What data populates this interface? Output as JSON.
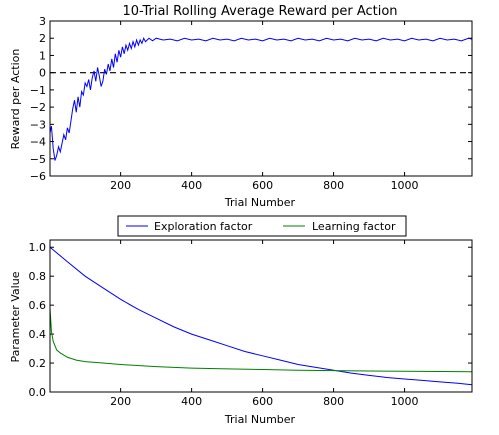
{
  "chart_data": [
    {
      "type": "line",
      "title": "10-Trial Rolling Average Reward per Action",
      "xlabel": "Trial Number",
      "ylabel": "Reward per Action",
      "xlim": [
        1,
        1190
      ],
      "ylim": [
        -6,
        3
      ],
      "xticks": [
        200,
        400,
        600,
        800,
        1000
      ],
      "yticks": [
        -6,
        -5,
        -4,
        -3,
        -2,
        -1,
        0,
        1,
        2,
        3
      ],
      "reference_line": {
        "y": 0,
        "style": "dashed",
        "color": "#000000"
      },
      "series": [
        {
          "color": "#0000ff",
          "points": [
            [
              1,
              -3.5
            ],
            [
              5,
              -3.1
            ],
            [
              10,
              -4.4
            ],
            [
              15,
              -5.1
            ],
            [
              20,
              -4.8
            ],
            [
              25,
              -4.3
            ],
            [
              30,
              -4.6
            ],
            [
              35,
              -4.1
            ],
            [
              40,
              -3.6
            ],
            [
              45,
              -3.9
            ],
            [
              50,
              -3.2
            ],
            [
              55,
              -3.5
            ],
            [
              60,
              -2.8
            ],
            [
              65,
              -2.1
            ],
            [
              70,
              -1.6
            ],
            [
              75,
              -2.3
            ],
            [
              80,
              -1.4
            ],
            [
              85,
              -2.0
            ],
            [
              90,
              -1.1
            ],
            [
              95,
              -1.3
            ],
            [
              100,
              -0.6
            ],
            [
              105,
              -0.8
            ],
            [
              110,
              -0.4
            ],
            [
              115,
              -1.0
            ],
            [
              120,
              -0.3
            ],
            [
              125,
              0.1
            ],
            [
              130,
              -0.5
            ],
            [
              135,
              0.3
            ],
            [
              140,
              -0.2
            ],
            [
              145,
              -0.8
            ],
            [
              150,
              -0.5
            ],
            [
              155,
              0.2
            ],
            [
              160,
              -0.1
            ],
            [
              165,
              0.5
            ],
            [
              170,
              0.1
            ],
            [
              175,
              0.8
            ],
            [
              180,
              0.3
            ],
            [
              185,
              1.1
            ],
            [
              190,
              0.6
            ],
            [
              195,
              1.3
            ],
            [
              200,
              0.9
            ],
            [
              205,
              1.5
            ],
            [
              210,
              1.1
            ],
            [
              215,
              1.6
            ],
            [
              220,
              1.3
            ],
            [
              225,
              1.7
            ],
            [
              230,
              1.4
            ],
            [
              235,
              1.8
            ],
            [
              240,
              1.5
            ],
            [
              245,
              1.9
            ],
            [
              250,
              1.6
            ],
            [
              255,
              1.9
            ],
            [
              260,
              1.7
            ],
            [
              265,
              2.0
            ],
            [
              270,
              1.8
            ],
            [
              280,
              2.0
            ],
            [
              290,
              1.85
            ],
            [
              300,
              2.0
            ],
            [
              320,
              1.9
            ],
            [
              340,
              1.95
            ],
            [
              360,
              1.85
            ],
            [
              380,
              2.0
            ],
            [
              400,
              1.9
            ],
            [
              420,
              1.95
            ],
            [
              440,
              1.85
            ],
            [
              460,
              2.0
            ],
            [
              480,
              1.9
            ],
            [
              500,
              1.95
            ],
            [
              520,
              1.85
            ],
            [
              540,
              2.0
            ],
            [
              560,
              1.9
            ],
            [
              580,
              1.95
            ],
            [
              600,
              1.85
            ],
            [
              620,
              2.0
            ],
            [
              640,
              1.9
            ],
            [
              660,
              1.95
            ],
            [
              680,
              1.85
            ],
            [
              700,
              2.0
            ],
            [
              720,
              1.9
            ],
            [
              740,
              1.95
            ],
            [
              760,
              1.85
            ],
            [
              780,
              2.0
            ],
            [
              800,
              1.9
            ],
            [
              820,
              1.95
            ],
            [
              840,
              1.85
            ],
            [
              860,
              2.0
            ],
            [
              880,
              1.9
            ],
            [
              900,
              1.95
            ],
            [
              920,
              1.85
            ],
            [
              940,
              2.0
            ],
            [
              960,
              1.9
            ],
            [
              980,
              1.95
            ],
            [
              1000,
              1.85
            ],
            [
              1020,
              2.0
            ],
            [
              1040,
              1.9
            ],
            [
              1060,
              1.95
            ],
            [
              1080,
              1.85
            ],
            [
              1100,
              2.0
            ],
            [
              1120,
              1.9
            ],
            [
              1140,
              1.95
            ],
            [
              1160,
              1.85
            ],
            [
              1180,
              2.0
            ],
            [
              1190,
              1.95
            ]
          ]
        }
      ]
    },
    {
      "type": "line",
      "title": "",
      "xlabel": "Trial Number",
      "ylabel": "Parameter Value",
      "xlim": [
        1,
        1190
      ],
      "ylim": [
        0.0,
        1.05
      ],
      "xticks": [
        200,
        400,
        600,
        800,
        1000
      ],
      "yticks": [
        0.0,
        0.2,
        0.4,
        0.6,
        0.8,
        1.0
      ],
      "legend": {
        "position": "top-center"
      },
      "series": [
        {
          "name": "Exploration factor",
          "color": "#0000ff",
          "points": [
            [
              1,
              1.0
            ],
            [
              50,
              0.9
            ],
            [
              100,
              0.8
            ],
            [
              150,
              0.72
            ],
            [
              200,
              0.64
            ],
            [
              250,
              0.57
            ],
            [
              300,
              0.51
            ],
            [
              350,
              0.45
            ],
            [
              400,
              0.4
            ],
            [
              450,
              0.36
            ],
            [
              500,
              0.32
            ],
            [
              550,
              0.28
            ],
            [
              600,
              0.25
            ],
            [
              650,
              0.22
            ],
            [
              700,
              0.19
            ],
            [
              750,
              0.17
            ],
            [
              800,
              0.15
            ],
            [
              850,
              0.13
            ],
            [
              900,
              0.115
            ],
            [
              950,
              0.1
            ],
            [
              1000,
              0.09
            ],
            [
              1050,
              0.08
            ],
            [
              1100,
              0.07
            ],
            [
              1150,
              0.06
            ],
            [
              1190,
              0.05
            ]
          ]
        },
        {
          "name": "Learning factor",
          "color": "#008000",
          "points": [
            [
              1,
              0.58
            ],
            [
              5,
              0.42
            ],
            [
              10,
              0.35
            ],
            [
              20,
              0.29
            ],
            [
              30,
              0.27
            ],
            [
              50,
              0.24
            ],
            [
              75,
              0.22
            ],
            [
              100,
              0.21
            ],
            [
              150,
              0.2
            ],
            [
              200,
              0.19
            ],
            [
              300,
              0.175
            ],
            [
              400,
              0.165
            ],
            [
              500,
              0.16
            ],
            [
              600,
              0.155
            ],
            [
              700,
              0.15
            ],
            [
              800,
              0.148
            ],
            [
              900,
              0.145
            ],
            [
              1000,
              0.143
            ],
            [
              1100,
              0.142
            ],
            [
              1190,
              0.14
            ]
          ]
        }
      ]
    }
  ]
}
